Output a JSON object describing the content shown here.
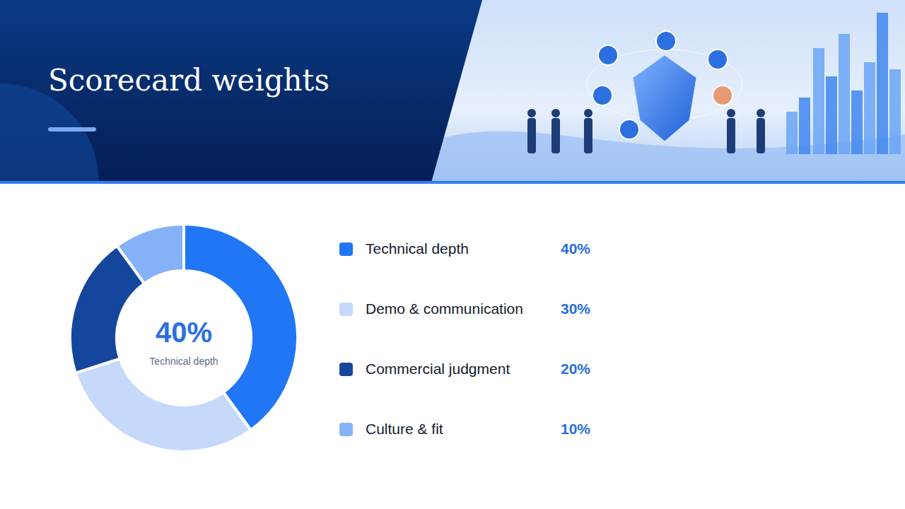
{
  "chart_data": {
    "type": "pie",
    "title": "Scorecard weights",
    "categories": [
      "Technical depth",
      "Demo & communication",
      "Commercial judgment",
      "Culture & fit"
    ],
    "values": [
      40,
      30,
      20,
      10
    ],
    "value_labels": [
      "40%",
      "30%",
      "20%",
      "10%"
    ],
    "colors": [
      "#2176f5",
      "#c5d9fb",
      "#15469e",
      "#85b2f7"
    ]
  }
}
